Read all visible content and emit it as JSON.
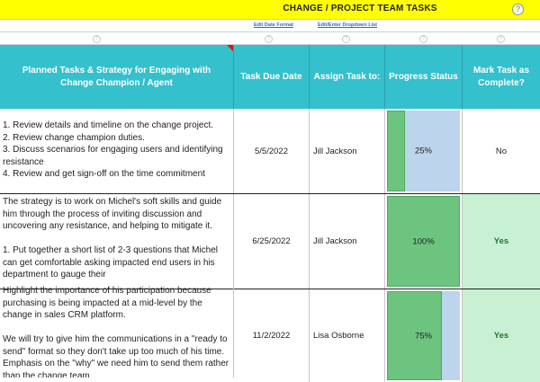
{
  "title": "CHANGE / PROJECT TEAM TASKS",
  "help_glyph": "?",
  "links": {
    "edit_date_format": "Edit Date Format",
    "edit_dropdown_list": "Edit/Enter Dropdown List"
  },
  "qmark": "?",
  "columns": {
    "tasks": "Planned Tasks & Strategy for Engaging with Change Champion / Agent",
    "due_date": "Task Due Date",
    "assign": "Assign Task to:",
    "progress": "Progress Status",
    "complete": "Mark Task as Complete?"
  },
  "rows": [
    {
      "task": "1. Review details and timeline on the change project.\n2. Review change champion duties.\n3. Discuss scenarios for engaging users and identifying resistance\n4. Review and get sign-off on the time commitment",
      "due": "5/5/2022",
      "assignee": "Jill Jackson",
      "progress_label": "25%",
      "progress": 0.25,
      "complete": "No"
    },
    {
      "task": "The strategy is to work on Michel's soft skills and guide him through the process of inviting discussion and uncovering any resistance, and helping to mitigate it.\n\n1. Put together a short list of 2-3 questions that Michel can get comfortable asking impacted end users in his department to gauge their",
      "due": "6/25/2022",
      "assignee": "Jill Jackson",
      "progress_label": "100%",
      "progress": 1.0,
      "complete": "Yes"
    },
    {
      "task": "Highlight the importance of his participation because purchasing is being impacted at a mid-level by the change in sales CRM platform.\n\nWe will try to give him the communications in a \"ready to send\" format so they don't take up too much of his time. Emphasis on the \"why\" we need him to send them rather than the change team",
      "due": "11/2/2022",
      "assignee": "Lisa Osborne",
      "progress_label": "75%",
      "progress": 0.75,
      "complete": "Yes"
    }
  ]
}
